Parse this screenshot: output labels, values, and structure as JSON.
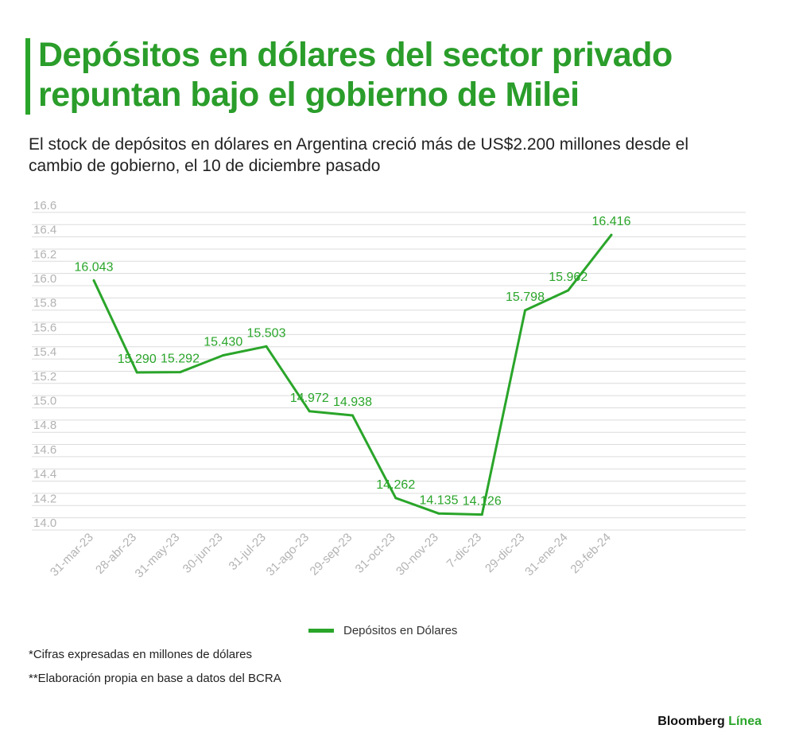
{
  "header": {
    "title": "Depósitos en dólares del sector privado repuntan bajo el gobierno de Milei",
    "subtitle": "El stock de depósitos en dólares en Argentina creció más de US$2.200 millones desde el cambio de gobierno, el 10 de diciembre pasado"
  },
  "chart_data": {
    "type": "line",
    "categories": [
      "31-mar-23",
      "28-abr-23",
      "31-may-23",
      "30-jun-23",
      "31-jul-23",
      "31-ago-23",
      "29-sep-23",
      "31-oct-23",
      "30-nov-23",
      "7-dic-23",
      "29-dic-23",
      "31-ene-24",
      "29-feb-24"
    ],
    "series": [
      {
        "name": "Depósitos en Dólares",
        "values": [
          16.043,
          15.29,
          15.292,
          15.43,
          15.503,
          14.972,
          14.938,
          14.262,
          14.135,
          14.126,
          15.798,
          15.962,
          16.416
        ],
        "labels": [
          "16.043",
          "15.290",
          "15.292",
          "15.430",
          "15.503",
          "14.972",
          "14.938",
          "14.262",
          "14.135",
          "14.126",
          "15.798",
          "15.962",
          "16.416"
        ],
        "color": "#2aa52a"
      }
    ],
    "yticks": [
      "14.0",
      "14.2",
      "14.4",
      "14.6",
      "14.8",
      "15.0",
      "15.2",
      "15.4",
      "15.6",
      "15.8",
      "16.0",
      "16.2",
      "16.4",
      "16.6"
    ],
    "ylim": [
      14.0,
      16.6
    ],
    "grid": true,
    "legend_position": "bottom"
  },
  "legend": {
    "label": "Depósitos en Dólares"
  },
  "notes": {
    "note1": "*Cifras expresadas en millones de dólares",
    "note2": "**Elaboración propia en base a datos del BCRA"
  },
  "brand": {
    "name": "Bloomberg",
    "accent": "Línea"
  },
  "colors": {
    "accent": "#2aa52a",
    "grid": "#dcdcdc",
    "tick": "#b3b3b3"
  }
}
